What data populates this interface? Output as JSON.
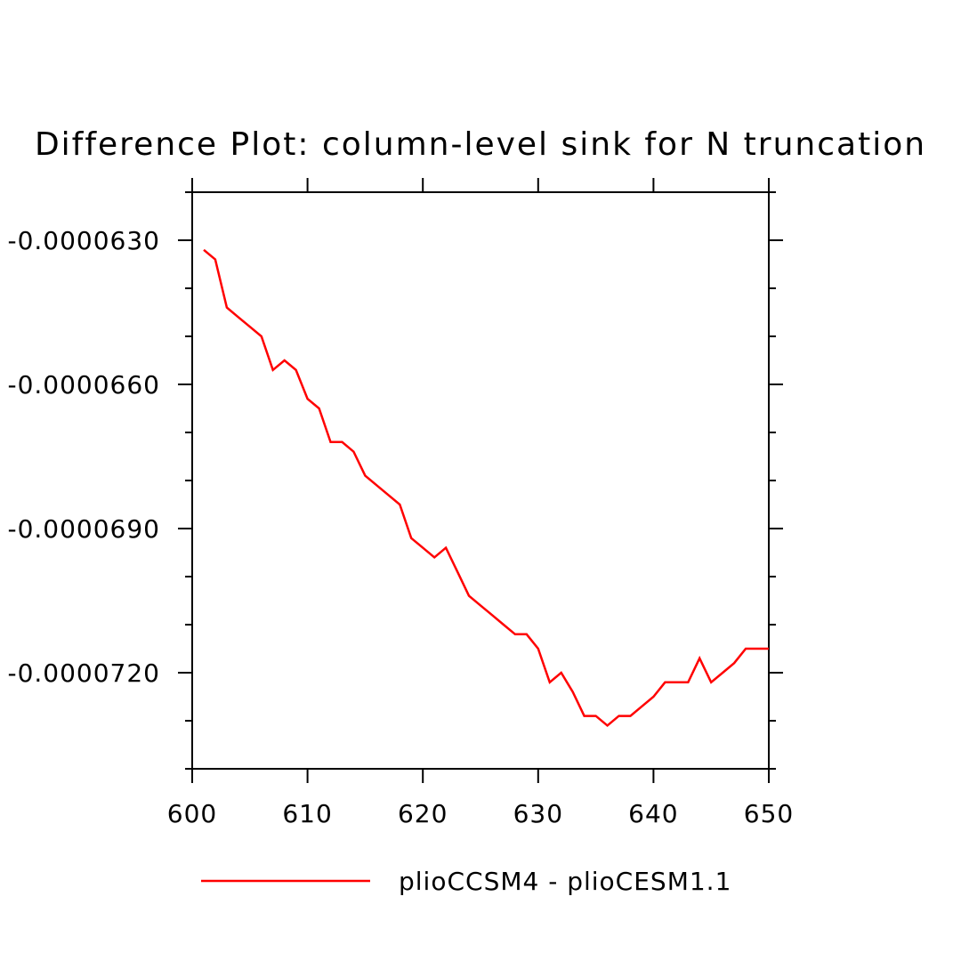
{
  "chart_data": {
    "type": "line",
    "title": "Difference Plot: column-level sink for N truncation",
    "xlabel": "",
    "ylabel": "",
    "xlim": [
      600,
      650
    ],
    "ylim": [
      -7.4e-05,
      -6.2e-05
    ],
    "x_ticks": [
      600,
      610,
      620,
      630,
      640,
      650
    ],
    "x_tick_labels": [
      "600",
      "610",
      "620",
      "630",
      "640",
      "650"
    ],
    "y_ticks": [
      -6.3e-05,
      -6.6e-05,
      -6.9e-05,
      -7.2e-05
    ],
    "y_tick_labels": [
      "-0.0000630",
      "-0.0000660",
      "-0.0000690",
      "-0.0000720"
    ],
    "y_minor_step": 1e-06,
    "x_minor_step": 10,
    "grid": false,
    "legend_position": "bottom",
    "series": [
      {
        "name": "plioCCSM4 - plioCESM1.1",
        "color": "#ff0000",
        "x": [
          601,
          602,
          603,
          604,
          605,
          606,
          607,
          608,
          609,
          610,
          611,
          612,
          613,
          614,
          615,
          616,
          617,
          618,
          619,
          620,
          621,
          622,
          623,
          624,
          625,
          626,
          627,
          628,
          629,
          630,
          631,
          632,
          633,
          634,
          635,
          636,
          637,
          638,
          639,
          640,
          641,
          642,
          643,
          644,
          645,
          646,
          647,
          648,
          649,
          650
        ],
        "y": [
          -6.32e-05,
          -6.34e-05,
          -6.44e-05,
          -6.46e-05,
          -6.48e-05,
          -6.5e-05,
          -6.57e-05,
          -6.55e-05,
          -6.57e-05,
          -6.63e-05,
          -6.65e-05,
          -6.72e-05,
          -6.72e-05,
          -6.74e-05,
          -6.79e-05,
          -6.81e-05,
          -6.83e-05,
          -6.85e-05,
          -6.92e-05,
          -6.94e-05,
          -6.96e-05,
          -6.94e-05,
          -6.99e-05,
          -7.04e-05,
          -7.06e-05,
          -7.08e-05,
          -7.1e-05,
          -7.12e-05,
          -7.12e-05,
          -7.15e-05,
          -7.22e-05,
          -7.2e-05,
          -7.24e-05,
          -7.29e-05,
          -7.29e-05,
          -7.31e-05,
          -7.29e-05,
          -7.29e-05,
          -7.27e-05,
          -7.25e-05,
          -7.22e-05,
          -7.22e-05,
          -7.22e-05,
          -7.17e-05,
          -7.22e-05,
          -7.2e-05,
          -7.18e-05,
          -7.15e-05,
          -7.15e-05,
          -7.15e-05
        ]
      }
    ]
  }
}
